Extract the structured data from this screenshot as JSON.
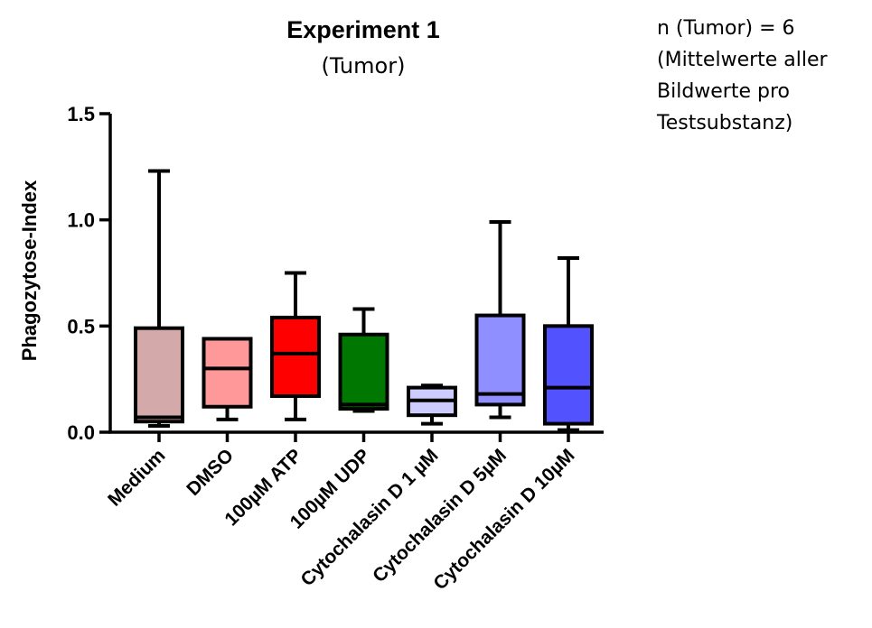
{
  "note": {
    "lines": [
      "n (Tumor) = 6",
      "(Mittelwerte aller",
      "Bildwerte pro",
      "Testsubstanz)"
    ]
  },
  "chart_data": {
    "type": "boxplot",
    "title": "Experiment 1",
    "subtitle": "(Tumor)",
    "xlabel": "",
    "ylabel": "Phagozytose-Index",
    "ylim": [
      0,
      1.5
    ],
    "yticks": [
      0.0,
      0.5,
      1.0,
      1.5
    ],
    "ytick_labels": [
      "0.0",
      "0.5",
      "1.0",
      "1.5"
    ],
    "grid": false,
    "legend": "none",
    "categories": [
      "Medium",
      "DMSO",
      "100µM ATP",
      "100µM UDP",
      "Cytochalasin D 1 µM",
      "Cytochalasin D 5µM",
      "Cytochalasin D 10µM"
    ],
    "colors": [
      "#d4a9a9",
      "#ff9999",
      "#ff0000",
      "#007700",
      "#ccccff",
      "#8f8fff",
      "#5252ff"
    ],
    "boxes": [
      {
        "min": 0.03,
        "q1": 0.05,
        "median": 0.07,
        "q3": 0.49,
        "max": 1.23
      },
      {
        "min": 0.06,
        "q1": 0.12,
        "median": 0.3,
        "q3": 0.44,
        "max": 0.44
      },
      {
        "min": 0.06,
        "q1": 0.17,
        "median": 0.37,
        "q3": 0.54,
        "max": 0.75
      },
      {
        "min": 0.1,
        "q1": 0.11,
        "median": 0.13,
        "q3": 0.46,
        "max": 0.58
      },
      {
        "min": 0.04,
        "q1": 0.08,
        "median": 0.15,
        "q3": 0.21,
        "max": 0.22
      },
      {
        "min": 0.07,
        "q1": 0.13,
        "median": 0.18,
        "q3": 0.55,
        "max": 0.99
      },
      {
        "min": 0.01,
        "q1": 0.04,
        "median": 0.21,
        "q3": 0.5,
        "max": 0.82
      }
    ]
  }
}
